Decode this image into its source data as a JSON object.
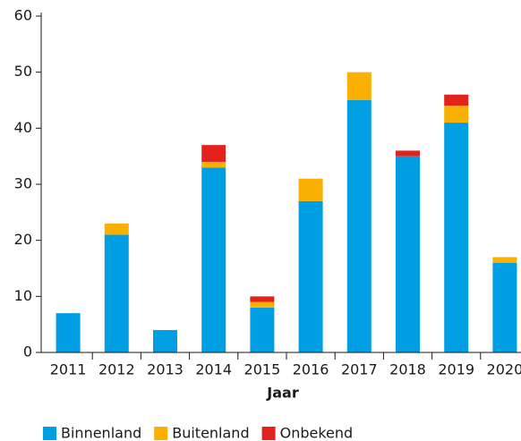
{
  "chart_data": {
    "type": "stacked_bar",
    "x_label": "Jaar",
    "categories": [
      "2011",
      "2012",
      "2013",
      "2014",
      "2015",
      "2016",
      "2017",
      "2018",
      "2019",
      "2020"
    ],
    "series": [
      {
        "name": "Binnenland",
        "color": "#009fe3",
        "values": [
          7,
          21,
          4,
          33,
          8,
          27,
          45,
          35,
          41,
          16
        ]
      },
      {
        "name": "Buitenland",
        "color": "#f9b000",
        "values": [
          0,
          2,
          0,
          1,
          1,
          4,
          5,
          0,
          3,
          1
        ]
      },
      {
        "name": "Onbekend",
        "color": "#e3231b",
        "values": [
          0,
          0,
          0,
          3,
          1,
          0,
          0,
          1,
          2,
          0
        ]
      }
    ],
    "ylim": [
      0,
      60
    ],
    "yticks": [
      0,
      10,
      20,
      30,
      40,
      50,
      60
    ],
    "legend": "bottom-left"
  }
}
